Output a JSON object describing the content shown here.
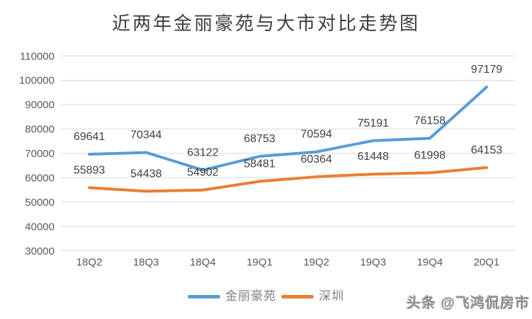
{
  "title": "近两年金丽豪苑与大市对比走势图",
  "watermark": "头条 @飞鸿侃房市",
  "chart_data": {
    "type": "line",
    "title": "近两年金丽豪苑与大市对比走势图",
    "xlabel": "",
    "ylabel": "",
    "categories": [
      "18Q2",
      "18Q3",
      "18Q4",
      "19Q1",
      "19Q2",
      "19Q3",
      "19Q4",
      "20Q1"
    ],
    "series": [
      {
        "name": "金丽豪苑",
        "color": "#5B9BD5",
        "values": [
          69641,
          70344,
          63122,
          68753,
          70594,
          75191,
          76158,
          97179
        ]
      },
      {
        "name": "深圳",
        "color": "#ED7D31",
        "values": [
          55893,
          54438,
          54902,
          58481,
          60364,
          61448,
          61998,
          64153
        ]
      }
    ],
    "ylim": [
      30000,
      110000
    ],
    "ytick_step": 10000,
    "yticks": [
      30000,
      40000,
      50000,
      60000,
      70000,
      80000,
      90000,
      100000,
      110000
    ],
    "grid": true,
    "data_labels": true,
    "legend_position": "bottom",
    "colors": {
      "gridline": "#D9D9D9",
      "axis_label": "#595959",
      "data_label": "#404040"
    }
  }
}
